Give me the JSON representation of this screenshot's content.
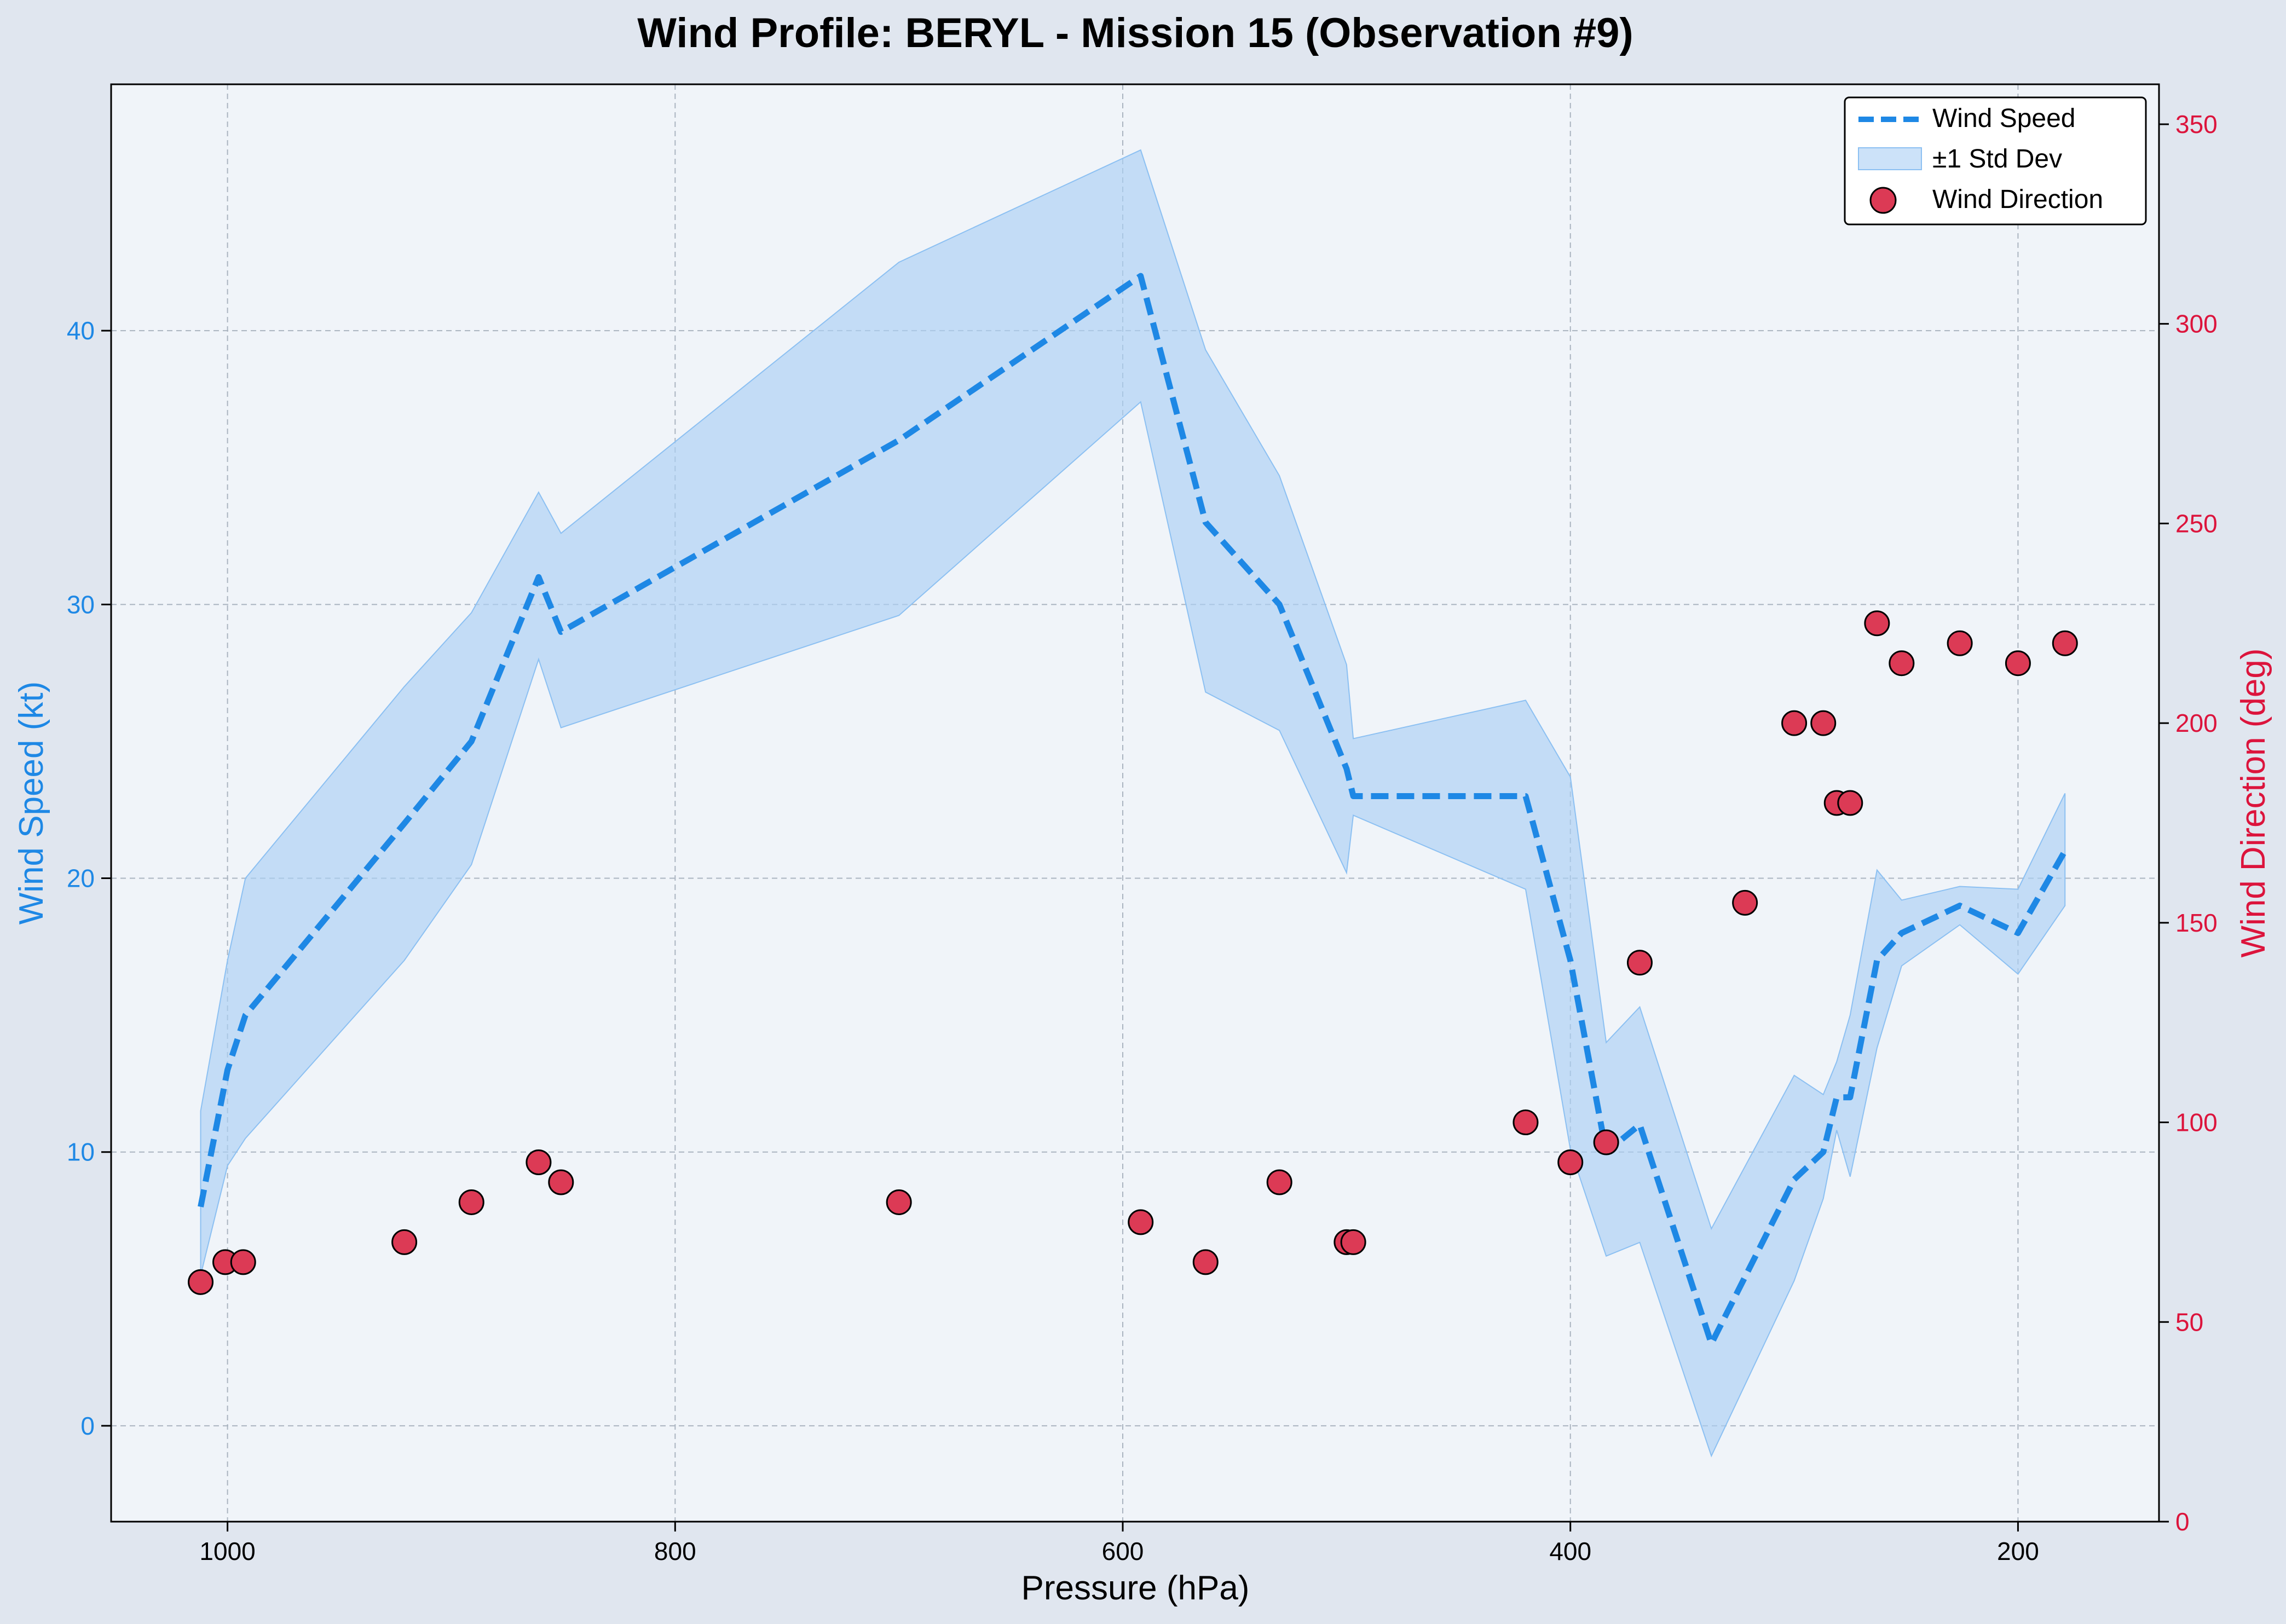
{
  "chart_data": {
    "type": "line",
    "title": "Wind Profile: BERYL - Mission 15 (Observation #9)",
    "xlabel": "Pressure (hPa)",
    "ylabel_left": "Wind Speed (kt)",
    "ylabel_right": "Wind Direction (deg)",
    "x_inverted": true,
    "xlim": [
      1052,
      137
    ],
    "ylim_left": [
      -3.5,
      49
    ],
    "ylim_right": [
      0,
      360
    ],
    "x_ticks": [
      1000,
      800,
      600,
      400,
      200
    ],
    "y_ticks_left": [
      0,
      10,
      20,
      30,
      40
    ],
    "y_ticks_right": [
      0,
      50,
      100,
      150,
      200,
      250,
      300,
      350
    ],
    "grid": true,
    "legend_position": "top-right",
    "colors": {
      "speed": "#1e88e5",
      "band": "#aacff5",
      "direction": "#dc143c",
      "plot_bg": "#f0f4f9",
      "page_bg": "#e0e6ef"
    },
    "legend": [
      {
        "label": "Wind Speed",
        "kind": "line"
      },
      {
        "label": "±1 Std Dev",
        "kind": "band"
      },
      {
        "label": "Wind Direction",
        "kind": "marker"
      }
    ],
    "series": [
      {
        "name": "Wind Speed",
        "x": [
          1012,
          1000,
          992,
          921,
          891,
          861,
          851,
          700,
          592,
          563,
          530,
          500,
          497,
          420,
          400,
          384,
          369,
          337,
          300,
          287,
          281,
          275,
          263,
          252,
          226,
          200,
          179
        ],
        "values": [
          8,
          13,
          15,
          22,
          25,
          31,
          29,
          36,
          42,
          33,
          30,
          24,
          23,
          23,
          17,
          10,
          11,
          3,
          9,
          10,
          12,
          12,
          17,
          18,
          19,
          18,
          21
        ],
        "std_upper": [
          11.5,
          17,
          20,
          27,
          29.7,
          34.1,
          32.6,
          42.5,
          46.6,
          39.3,
          34.7,
          27.8,
          25.1,
          26.5,
          23.7,
          14,
          15.3,
          7.2,
          12.8,
          12.1,
          13.3,
          15,
          20.3,
          19.2,
          19.7,
          19.6,
          23.1
        ],
        "std_lower": [
          5.5,
          9.5,
          10.5,
          17,
          20.5,
          28,
          25.5,
          29.6,
          37.4,
          26.8,
          25.4,
          20.2,
          22.3,
          19.6,
          10.1,
          6.2,
          6.7,
          -1.1,
          5.3,
          8.3,
          10.8,
          9.1,
          13.8,
          16.8,
          18.3,
          16.5,
          19
        ]
      },
      {
        "name": "Wind Direction",
        "x": [
          1012,
          1001,
          993,
          921,
          891,
          861,
          851,
          700,
          592,
          563,
          530,
          500,
          497,
          420,
          400,
          384,
          369,
          322,
          300,
          287,
          281,
          275,
          263,
          252,
          226,
          200,
          179
        ],
        "values": [
          60,
          65,
          65,
          70,
          80,
          90,
          85,
          80,
          75,
          65,
          85,
          70,
          70,
          100,
          90,
          95,
          140,
          155,
          200,
          200,
          180,
          180,
          225,
          215,
          220,
          215,
          220
        ]
      }
    ]
  }
}
